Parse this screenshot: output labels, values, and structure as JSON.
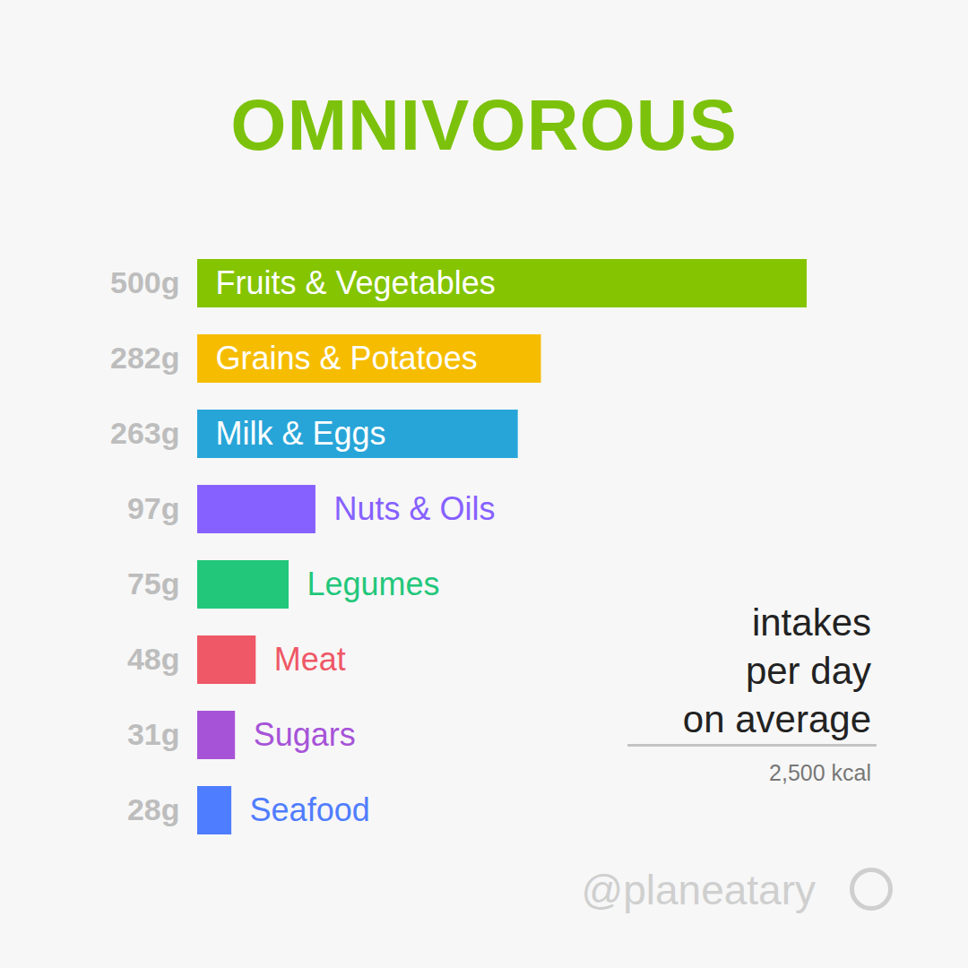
{
  "chart_data": {
    "type": "bar",
    "orientation": "horizontal",
    "title": "OMNIVOROUS",
    "subtitle": [
      "intakes",
      "per day",
      "on average"
    ],
    "caption": "2,500 kcal",
    "source": "@planeatary",
    "categories": [
      "Fruits & Vegetables",
      "Grains & Potatoes",
      "Milk & Eggs",
      "Nuts & Oils",
      "Legumes",
      "Meat",
      "Sugars",
      "Seafood"
    ],
    "values": [
      500,
      282,
      263,
      97,
      75,
      48,
      31,
      28
    ],
    "value_labels": [
      "500g",
      "282g",
      "263g",
      "97g",
      "75g",
      "48g",
      "31g",
      "28g"
    ],
    "colors": [
      "#84c400",
      "#f6bd00",
      "#27a5d8",
      "#8661ff",
      "#22c77a",
      "#ef5866",
      "#a653d8",
      "#4f7dff"
    ],
    "data_labels": true,
    "tick_labels": false
  }
}
